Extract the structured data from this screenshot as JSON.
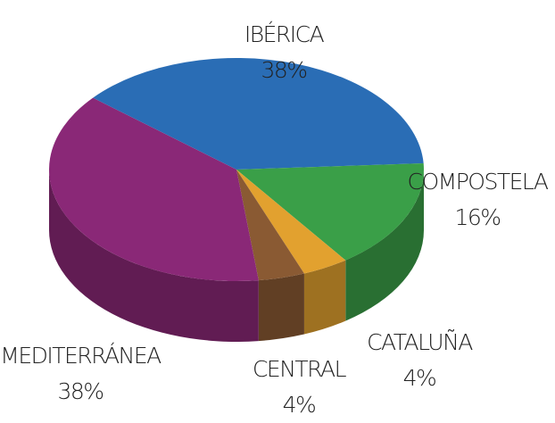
{
  "chart_data": {
    "type": "pie",
    "categories": [
      "IBÉRICA",
      "COMPOSTELA",
      "CATALUÑA",
      "CENTRAL",
      "MEDITERRÁNEA"
    ],
    "values": [
      38,
      16,
      4,
      4,
      38
    ],
    "value_labels": [
      "38%",
      "16%",
      "4%",
      "4%",
      "38%"
    ],
    "colors": [
      "#2a6db5",
      "#3a9f48",
      "#e2a12f",
      "#8a5a33",
      "#8a2877"
    ]
  }
}
